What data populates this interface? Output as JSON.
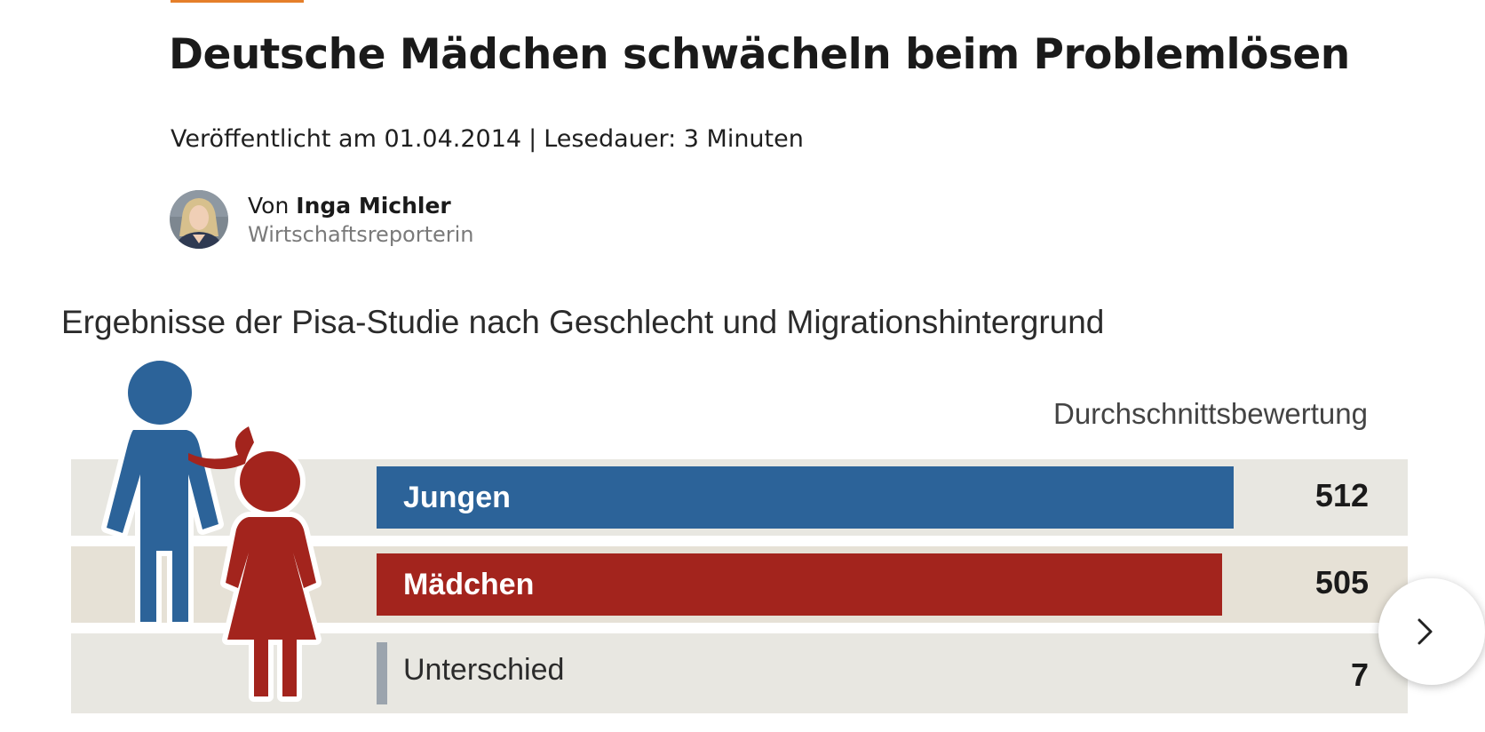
{
  "article": {
    "headline": "Deutsche Mädchen schwächeln beim Problemlösen",
    "published": "Veröffentlicht am 01.04.2014",
    "separator": "|",
    "reading_time": "Lesedauer: 3 Minuten",
    "author": {
      "prefix": "Von",
      "name": "Inga Michler",
      "role": "Wirtschaftsreporterin"
    },
    "accent_color": "#e57f2a"
  },
  "chart_data": {
    "type": "bar",
    "title": "Ergebnisse der Pisa-Studie nach Geschlecht und Migrationshintergrund",
    "value_header": "Durchschnittsbewertung",
    "categories": [
      "Jungen",
      "Mädchen",
      "Unterschied"
    ],
    "values": [
      512,
      505,
      7
    ],
    "colors": [
      "#2c6399",
      "#a3241d",
      "#9ba4ad"
    ]
  },
  "carousel": {
    "next_icon": "chevron-right-icon"
  }
}
